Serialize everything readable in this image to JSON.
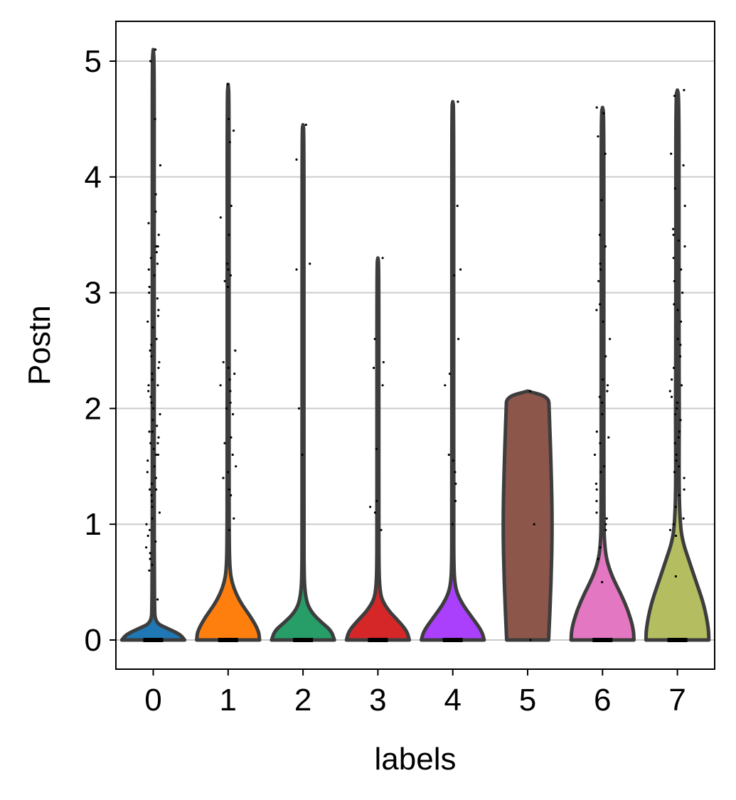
{
  "chart_data": {
    "type": "violin",
    "title": "",
    "xlabel": "labels",
    "ylabel": "Postn",
    "ylim": [
      -0.25,
      5.35
    ],
    "yticks": [
      0,
      1,
      2,
      3,
      4,
      5
    ],
    "grid": "y",
    "categories": [
      "0",
      "1",
      "2",
      "3",
      "4",
      "5",
      "6",
      "7"
    ],
    "colors": [
      "#1f77b4",
      "#ff7f0e",
      "#279e68",
      "#d62728",
      "#aa40fc",
      "#8c564b",
      "#e377c2",
      "#b5bd61"
    ],
    "series": [
      {
        "category": "0",
        "max": 5.1,
        "base_halfwidth": 0.42,
        "shape": [
          [
            0.0,
            1.0
          ],
          [
            0.05,
            0.85
          ],
          [
            0.1,
            0.45
          ],
          [
            0.15,
            0.06
          ],
          [
            0.3,
            0.04
          ],
          [
            0.6,
            0.035
          ],
          [
            1.0,
            0.03
          ],
          [
            2.0,
            0.03
          ],
          [
            3.0,
            0.03
          ],
          [
            4.0,
            0.03
          ],
          [
            5.0,
            0.03
          ],
          [
            5.1,
            0.0
          ]
        ]
      },
      {
        "category": "1",
        "max": 4.8,
        "base_halfwidth": 0.42,
        "shape": [
          [
            0.0,
            1.0
          ],
          [
            0.08,
            0.97
          ],
          [
            0.2,
            0.72
          ],
          [
            0.3,
            0.45
          ],
          [
            0.4,
            0.25
          ],
          [
            0.5,
            0.12
          ],
          [
            0.6,
            0.06
          ],
          [
            0.8,
            0.035
          ],
          [
            1.5,
            0.03
          ],
          [
            3.0,
            0.03
          ],
          [
            4.7,
            0.03
          ],
          [
            4.8,
            0.0
          ]
        ]
      },
      {
        "category": "2",
        "max": 4.45,
        "base_halfwidth": 0.42,
        "shape": [
          [
            0.0,
            1.0
          ],
          [
            0.08,
            0.9
          ],
          [
            0.15,
            0.6
          ],
          [
            0.22,
            0.33
          ],
          [
            0.3,
            0.15
          ],
          [
            0.4,
            0.07
          ],
          [
            0.55,
            0.035
          ],
          [
            1.0,
            0.03
          ],
          [
            3.0,
            0.03
          ],
          [
            4.4,
            0.03
          ],
          [
            4.45,
            0.0
          ]
        ]
      },
      {
        "category": "3",
        "max": 3.3,
        "base_halfwidth": 0.42,
        "shape": [
          [
            0.0,
            1.0
          ],
          [
            0.08,
            0.92
          ],
          [
            0.18,
            0.6
          ],
          [
            0.25,
            0.35
          ],
          [
            0.35,
            0.12
          ],
          [
            0.45,
            0.06
          ],
          [
            0.6,
            0.035
          ],
          [
            1.0,
            0.03
          ],
          [
            2.0,
            0.03
          ],
          [
            3.25,
            0.03
          ],
          [
            3.3,
            0.0
          ]
        ]
      },
      {
        "category": "4",
        "max": 4.65,
        "base_halfwidth": 0.42,
        "shape": [
          [
            0.0,
            1.0
          ],
          [
            0.08,
            0.92
          ],
          [
            0.2,
            0.6
          ],
          [
            0.3,
            0.33
          ],
          [
            0.4,
            0.14
          ],
          [
            0.5,
            0.06
          ],
          [
            0.65,
            0.035
          ],
          [
            1.0,
            0.03
          ],
          [
            3.0,
            0.03
          ],
          [
            4.6,
            0.03
          ],
          [
            4.65,
            0.0
          ]
        ]
      },
      {
        "category": "5",
        "max": 2.15,
        "base_halfwidth": 0.33,
        "shape": [
          [
            0.0,
            0.85
          ],
          [
            0.5,
            0.95
          ],
          [
            1.0,
            1.0
          ],
          [
            1.5,
            0.95
          ],
          [
            2.0,
            0.87
          ],
          [
            2.1,
            0.85
          ],
          [
            2.15,
            0.0
          ]
        ]
      },
      {
        "category": "6",
        "max": 4.6,
        "base_halfwidth": 0.42,
        "shape": [
          [
            0.0,
            1.0
          ],
          [
            0.1,
            0.98
          ],
          [
            0.25,
            0.82
          ],
          [
            0.4,
            0.58
          ],
          [
            0.55,
            0.3
          ],
          [
            0.7,
            0.12
          ],
          [
            0.85,
            0.06
          ],
          [
            1.0,
            0.045
          ],
          [
            2.0,
            0.04
          ],
          [
            3.5,
            0.04
          ],
          [
            4.55,
            0.04
          ],
          [
            4.6,
            0.0
          ]
        ]
      },
      {
        "category": "7",
        "max": 4.75,
        "base_halfwidth": 0.42,
        "shape": [
          [
            0.0,
            1.0
          ],
          [
            0.1,
            0.99
          ],
          [
            0.3,
            0.85
          ],
          [
            0.5,
            0.6
          ],
          [
            0.7,
            0.35
          ],
          [
            0.85,
            0.17
          ],
          [
            1.0,
            0.09
          ],
          [
            1.3,
            0.05
          ],
          [
            2.0,
            0.06
          ],
          [
            2.5,
            0.05
          ],
          [
            3.5,
            0.05
          ],
          [
            4.7,
            0.05
          ],
          [
            4.75,
            0.0
          ]
        ]
      }
    ],
    "points": [
      {
        "category": "0",
        "values": [
          5.1,
          5.0,
          4.5,
          4.1,
          3.85,
          3.7,
          3.6,
          3.5,
          3.4,
          3.4,
          3.35,
          3.3,
          3.25,
          3.2,
          3.15,
          3.05,
          3.0,
          2.95,
          2.85,
          2.8,
          2.75,
          2.7,
          2.6,
          2.55,
          2.5,
          2.45,
          2.4,
          2.35,
          2.3,
          2.25,
          2.2,
          2.2,
          2.15,
          2.1,
          2.05,
          2.0,
          1.95,
          1.9,
          1.85,
          1.8,
          1.8,
          1.75,
          1.7,
          1.7,
          1.65,
          1.6,
          1.6,
          1.55,
          1.5,
          1.45,
          1.4,
          1.35,
          1.3,
          1.3,
          1.25,
          1.2,
          1.15,
          1.1,
          1.05,
          1.0,
          0.95,
          0.9,
          0.85,
          0.8,
          0.75,
          0.7,
          0.65,
          0.6,
          0.35
        ]
      },
      {
        "category": "1",
        "values": [
          4.8,
          4.5,
          4.4,
          4.3,
          3.75,
          3.65,
          3.5,
          3.25,
          3.2,
          3.15,
          3.1,
          3.05,
          2.5,
          2.4,
          2.35,
          2.3,
          2.25,
          2.2,
          2.15,
          2.05,
          2.0,
          1.95,
          1.75,
          1.7,
          1.6,
          1.5,
          1.45,
          1.4,
          1.3,
          1.25,
          1.05,
          0.95
        ]
      },
      {
        "category": "2",
        "values": [
          4.45,
          4.15,
          3.25,
          3.2,
          2.0,
          1.6
        ]
      },
      {
        "category": "3",
        "values": [
          3.3,
          2.6,
          2.4,
          2.35,
          2.2,
          1.65,
          1.2,
          1.15,
          1.1,
          0.95
        ]
      },
      {
        "category": "4",
        "values": [
          4.65,
          3.75,
          3.2,
          3.15,
          2.6,
          2.3,
          2.2,
          1.6,
          1.55,
          1.45,
          1.35,
          1.2,
          1.0
        ]
      },
      {
        "category": "5",
        "values": [
          2.15,
          1.0,
          0.0
        ]
      },
      {
        "category": "6",
        "values": [
          4.6,
          4.55,
          4.35,
          4.2,
          3.8,
          3.5,
          3.4,
          3.25,
          3.2,
          3.1,
          2.9,
          2.85,
          2.75,
          2.6,
          2.45,
          2.25,
          2.2,
          2.15,
          2.1,
          2.05,
          1.95,
          1.8,
          1.75,
          1.7,
          1.6,
          1.5,
          1.45,
          1.35,
          1.3,
          1.2,
          1.1,
          1.05,
          1.0,
          0.95,
          0.8,
          0.7,
          0.5
        ]
      },
      {
        "category": "7",
        "values": [
          4.75,
          4.7,
          4.2,
          4.1,
          3.9,
          3.75,
          3.55,
          3.5,
          3.45,
          3.4,
          3.3,
          3.2,
          3.1,
          3.0,
          2.9,
          2.85,
          2.75,
          2.6,
          2.55,
          2.45,
          2.35,
          2.25,
          2.2,
          2.15,
          2.1,
          2.05,
          2.0,
          1.95,
          1.9,
          1.8,
          1.75,
          1.7,
          1.6,
          1.55,
          1.5,
          1.45,
          1.4,
          1.3,
          1.25,
          1.15,
          1.05,
          1.0,
          0.95,
          0.9,
          0.55
        ]
      }
    ]
  }
}
